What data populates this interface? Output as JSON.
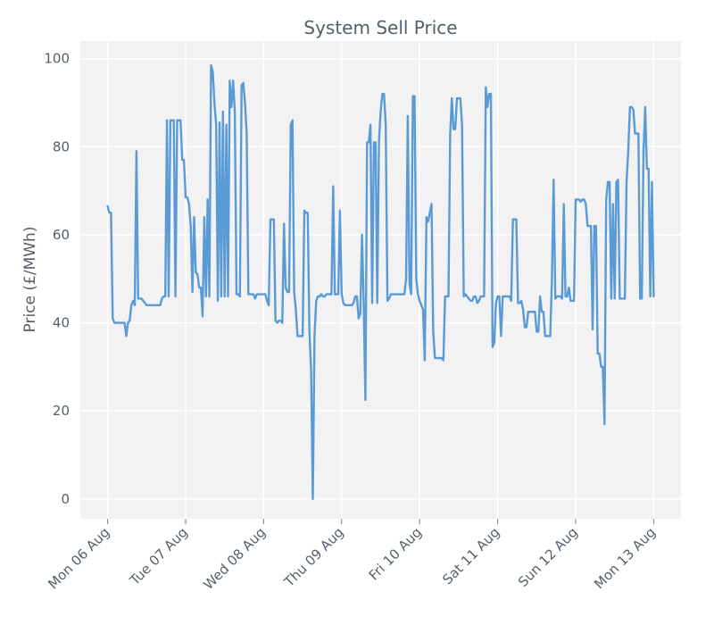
{
  "chart_data": {
    "type": "line",
    "title": "System Sell Price",
    "xlabel": "",
    "ylabel": "Price (£/MWh)",
    "ylim": [
      -4.5,
      104
    ],
    "x_start_day": 0,
    "x_end_day": 7,
    "xlim_days": [
      -0.35,
      7.35
    ],
    "x_ticks": [
      {
        "day": 0,
        "label": "Mon 06 Aug"
      },
      {
        "day": 1,
        "label": "Tue 07 Aug"
      },
      {
        "day": 2,
        "label": "Wed 08 Aug"
      },
      {
        "day": 3,
        "label": "Thu 09 Aug"
      },
      {
        "day": 4,
        "label": "Fri 10 Aug"
      },
      {
        "day": 5,
        "label": "Sat 11 Aug"
      },
      {
        "day": 6,
        "label": "Sun 12 Aug"
      },
      {
        "day": 7,
        "label": "Mon 13 Aug"
      }
    ],
    "y_ticks": [
      0,
      20,
      40,
      60,
      80,
      100
    ],
    "grid": true,
    "series": [
      {
        "name": "System Sell Price",
        "color": "#5b9bd5",
        "values": [
          66.5,
          65.0,
          65.0,
          41.0,
          40.0,
          40.0,
          40.0,
          40.0,
          40.0,
          40.0,
          40.0,
          37.0,
          40.0,
          40.5,
          44.0,
          45.0,
          44.0,
          79.0,
          45.5,
          45.5,
          45.5,
          45.0,
          44.5,
          44.0,
          44.0,
          44.0,
          44.0,
          44.0,
          44.0,
          44.0,
          44.0,
          44.0,
          45.5,
          46.0,
          46.0,
          86.0,
          46.0,
          86.0,
          86.0,
          86.0,
          46.0,
          86.0,
          86.0,
          86.0,
          77.0,
          77.0,
          68.5,
          68.5,
          67.0,
          62.0,
          47.0,
          64.0,
          51.5,
          51.0,
          48.0,
          48.0,
          41.5,
          64.0,
          46.0,
          68.0,
          46.0,
          98.5,
          97.0,
          90.0,
          85.0,
          45.0,
          85.5,
          46.0,
          88.0,
          46.0,
          85.0,
          46.0,
          95.0,
          89.0,
          95.0,
          88.0,
          46.5,
          46.5,
          46.0,
          94.0,
          94.5,
          90.0,
          83.0,
          46.5,
          46.5,
          46.5,
          46.5,
          45.5,
          46.5,
          46.5,
          46.5,
          46.5,
          46.5,
          46.5,
          45.0,
          44.0,
          63.5,
          63.5,
          63.5,
          40.5,
          40.0,
          40.5,
          40.5,
          40.0,
          62.5,
          48.0,
          47.0,
          47.0,
          85.0,
          86.0,
          47.0,
          43.0,
          37.0,
          37.0,
          37.0,
          37.0,
          65.5,
          65.0,
          65.0,
          38.0,
          29.0,
          0.0,
          37.0,
          45.0,
          46.0,
          46.0,
          46.5,
          46.0,
          46.0,
          46.5,
          46.5,
          46.5,
          46.5,
          71.0,
          46.5,
          46.5,
          46.5,
          65.5,
          46.5,
          44.5,
          44.0,
          44.0,
          44.0,
          44.0,
          44.0,
          44.5,
          46.0,
          46.0,
          41.0,
          42.0,
          60.0,
          44.5,
          22.5,
          81.0,
          81.0,
          85.0,
          44.5,
          81.0,
          81.0,
          44.5,
          81.0,
          88.0,
          92.0,
          92.0,
          85.0,
          45.0,
          45.5,
          46.5,
          46.5,
          46.5,
          46.5,
          46.5,
          46.5,
          46.5,
          46.5,
          46.5,
          50.0,
          87.0,
          49.0,
          46.5,
          91.5,
          91.5,
          50.0,
          46.5,
          45.0,
          44.0,
          43.0,
          31.5,
          64.0,
          63.0,
          65.0,
          67.0,
          38.0,
          32.0,
          32.0,
          32.0,
          32.0,
          32.0,
          31.5,
          46.0,
          46.0,
          46.0,
          83.0,
          91.0,
          84.0,
          84.0,
          91.0,
          91.0,
          91.0,
          85.0,
          46.0,
          46.5,
          46.0,
          45.5,
          45.0,
          45.0,
          46.0,
          46.0,
          44.5,
          45.0,
          46.0,
          46.0,
          46.0,
          93.5,
          89.0,
          92.0,
          92.0,
          34.5,
          35.5,
          44.5,
          46.0,
          46.0,
          37.0,
          46.0,
          46.0,
          46.0,
          46.0,
          46.0,
          45.0,
          63.5,
          63.5,
          63.5,
          44.5,
          44.5,
          45.0,
          43.0,
          39.0,
          39.0,
          42.5,
          42.5,
          42.5,
          42.5,
          42.5,
          38.0,
          38.0,
          46.0,
          42.5,
          42.5,
          37.0,
          37.0,
          37.0,
          37.0,
          50.0,
          72.5,
          45.5,
          46.0,
          46.0,
          46.0,
          45.5,
          67.0,
          46.0,
          46.0,
          48.0,
          45.0,
          45.0,
          45.0,
          68.0,
          68.0,
          68.0,
          67.5,
          68.0,
          68.0,
          67.0,
          62.0,
          62.0,
          62.0,
          38.5,
          62.0,
          62.0,
          33.0,
          33.0,
          30.0,
          30.0,
          17.0,
          68.0,
          72.0,
          72.0,
          45.5,
          67.0,
          45.5,
          72.0,
          72.5,
          45.5,
          45.5,
          45.5,
          45.5,
          72.0,
          79.0,
          89.0,
          89.0,
          88.5,
          83.0,
          83.0,
          83.0,
          45.5,
          45.5,
          79.0,
          89.0,
          75.0,
          75.0,
          46.0,
          72.0,
          46.0
        ]
      }
    ]
  }
}
